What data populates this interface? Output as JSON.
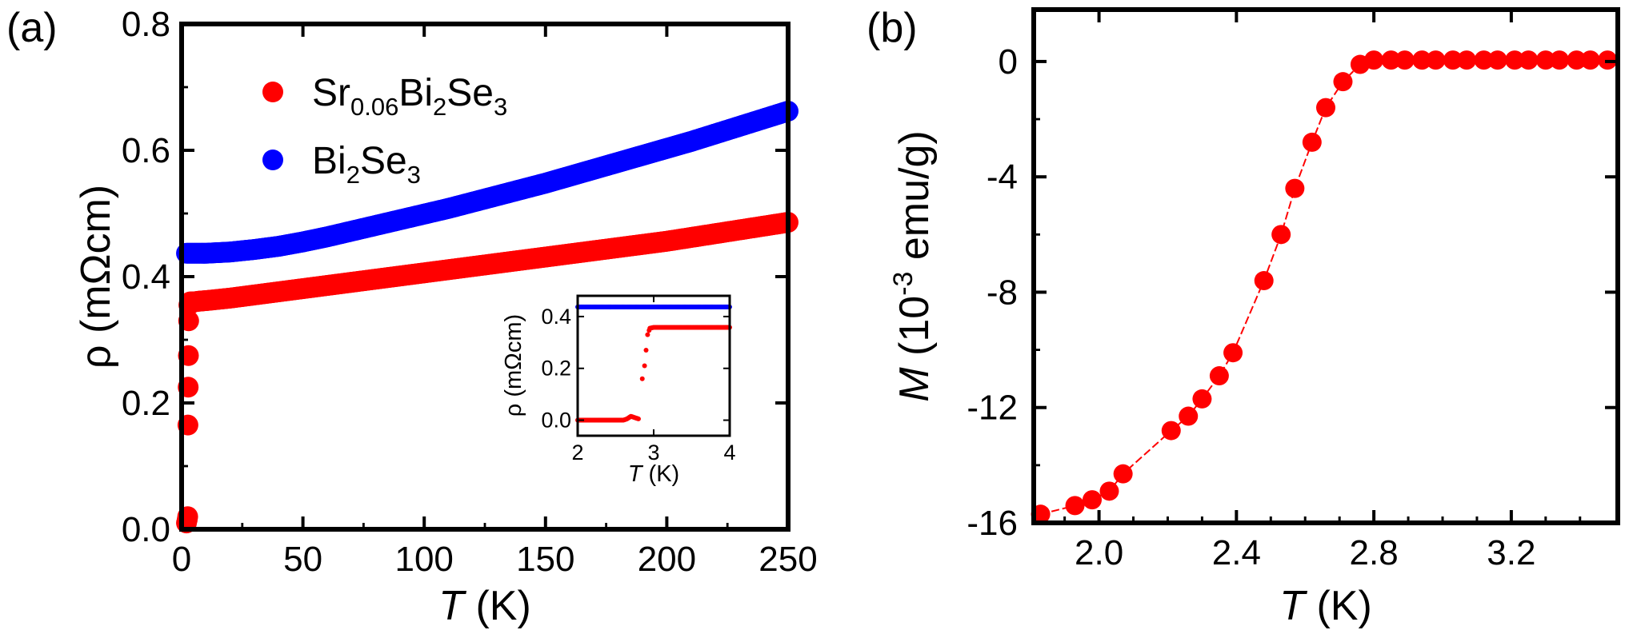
{
  "figure": {
    "panel_a_label": "(a)",
    "panel_b_label": "(b)"
  },
  "chart_data": [
    {
      "id": "a",
      "type": "scatter",
      "title": "",
      "xlabel_italic": "T",
      "xlabel_rest": " (K)",
      "ylabel": "ρ (mΩcm)",
      "xlim": [
        0,
        250
      ],
      "ylim": [
        0,
        0.8
      ],
      "xticks": [
        "0",
        "50",
        "100",
        "150",
        "200",
        "250"
      ],
      "xtick_values": [
        0,
        50,
        100,
        150,
        200,
        250
      ],
      "yticks": [
        "0.0",
        "0.2",
        "0.4",
        "0.6",
        "0.8"
      ],
      "ytick_values": [
        0,
        0.2,
        0.4,
        0.6,
        0.8
      ],
      "legend": {
        "position": "top-left",
        "entries": [
          {
            "base": "Sr",
            "sub1": "0.06",
            "mid1": "Bi",
            "sub2": "2",
            "mid2": "Se",
            "sub3": "3",
            "color": "#ff0000"
          },
          {
            "base": "Bi",
            "sub1": "2",
            "mid1": "Se",
            "sub2": "3",
            "mid2": "",
            "sub3": "",
            "color": "#0000ff"
          }
        ]
      },
      "series": [
        {
          "name": "Sr0.06Bi2Se3",
          "color": "#ff0000",
          "x": [
            2.0,
            2.3,
            2.5,
            2.6,
            2.7,
            2.8,
            2.9,
            3.0,
            3.2,
            3.5,
            4,
            5,
            7,
            10,
            15,
            20,
            30,
            40,
            50,
            60,
            70,
            80,
            90,
            100,
            110,
            120,
            130,
            140,
            150,
            160,
            170,
            180,
            190,
            200,
            210,
            220,
            230,
            240,
            250
          ],
          "y": [
            0.01,
            0.015,
            0.02,
            0.165,
            0.225,
            0.275,
            0.33,
            0.355,
            0.358,
            0.36,
            0.36,
            0.36,
            0.361,
            0.362,
            0.364,
            0.366,
            0.371,
            0.376,
            0.381,
            0.386,
            0.391,
            0.396,
            0.401,
            0.406,
            0.411,
            0.416,
            0.421,
            0.426,
            0.431,
            0.436,
            0.441,
            0.446,
            0.451,
            0.456,
            0.462,
            0.468,
            0.474,
            0.48,
            0.486
          ]
        },
        {
          "name": "Bi2Se3",
          "color": "#0000ff",
          "x": [
            2,
            5,
            10,
            15,
            20,
            25,
            30,
            40,
            50,
            60,
            70,
            80,
            90,
            100,
            110,
            120,
            130,
            140,
            150,
            160,
            170,
            180,
            190,
            200,
            210,
            220,
            230,
            240,
            250
          ],
          "y": [
            0.437,
            0.437,
            0.437,
            0.438,
            0.439,
            0.441,
            0.443,
            0.448,
            0.455,
            0.463,
            0.472,
            0.481,
            0.49,
            0.499,
            0.508,
            0.518,
            0.528,
            0.538,
            0.548,
            0.559,
            0.57,
            0.581,
            0.592,
            0.603,
            0.614,
            0.626,
            0.638,
            0.65,
            0.662
          ]
        }
      ]
    },
    {
      "id": "a_inset",
      "type": "scatter",
      "xlabel_italic": "T",
      "xlabel_rest": " (K)",
      "ylabel": "ρ (mΩcm)",
      "xlim": [
        2,
        4
      ],
      "ylim": [
        -0.06,
        0.48
      ],
      "xticks": [
        "2",
        "3",
        "4"
      ],
      "xtick_values": [
        2,
        3,
        4
      ],
      "yticks": [
        "0.0",
        "0.2",
        "0.4"
      ],
      "ytick_values": [
        0,
        0.2,
        0.4
      ],
      "series": [
        {
          "name": "Sr0.06Bi2Se3",
          "color": "#ff0000",
          "x": [
            2.0,
            2.1,
            2.2,
            2.3,
            2.4,
            2.5,
            2.6,
            2.65,
            2.7,
            2.75,
            2.8,
            2.85,
            2.88,
            2.9,
            2.92,
            2.95,
            3.0,
            3.2,
            3.4,
            3.6,
            3.8,
            4.0
          ],
          "y": [
            0.0,
            0.0,
            0.0,
            0.0,
            0.0,
            0.0,
            0.0,
            0.005,
            0.015,
            0.01,
            0.005,
            0.16,
            0.21,
            0.27,
            0.33,
            0.355,
            0.358,
            0.358,
            0.358,
            0.358,
            0.358,
            0.358
          ]
        },
        {
          "name": "Bi2Se3",
          "color": "#0000ff",
          "x": [
            2.0,
            2.5,
            3.0,
            3.5,
            4.0
          ],
          "y": [
            0.437,
            0.437,
            0.437,
            0.437,
            0.437
          ]
        }
      ]
    },
    {
      "id": "b",
      "type": "line",
      "title": "",
      "xlabel_italic": "T",
      "xlabel_rest": " (K)",
      "ylabel_italic": "M",
      "ylabel_rest": " (10",
      "ylabel_sup": "-3",
      "ylabel_end": " emu/g)",
      "xlim": [
        1.81,
        3.51
      ],
      "ylim": [
        -16,
        1.8
      ],
      "xticks": [
        "2.0",
        "2.4",
        "2.8",
        "3.2"
      ],
      "xtick_values": [
        2.0,
        2.4,
        2.8,
        3.2
      ],
      "yticks": [
        "0",
        "-4",
        "-8",
        "-12",
        "-16"
      ],
      "ytick_values": [
        0,
        -4,
        -8,
        -12,
        -16
      ],
      "series": [
        {
          "name": "M",
          "color": "#ff0000",
          "x": [
            1.83,
            1.93,
            1.98,
            2.03,
            2.07,
            2.21,
            2.26,
            2.3,
            2.35,
            2.39,
            2.48,
            2.53,
            2.57,
            2.62,
            2.66,
            2.71,
            2.76,
            2.8,
            2.85,
            2.89,
            2.94,
            2.98,
            3.03,
            3.07,
            3.12,
            3.16,
            3.21,
            3.25,
            3.3,
            3.34,
            3.39,
            3.43,
            3.48
          ],
          "y": [
            -15.7,
            -15.4,
            -15.2,
            -14.9,
            -14.3,
            -12.8,
            -12.3,
            -11.7,
            -10.9,
            -10.1,
            -7.6,
            -6.0,
            -4.4,
            -2.8,
            -1.6,
            -0.7,
            -0.1,
            0.05,
            0.05,
            0.05,
            0.05,
            0.05,
            0.05,
            0.05,
            0.05,
            0.05,
            0.05,
            0.05,
            0.05,
            0.05,
            0.05,
            0.05,
            0.05
          ]
        }
      ]
    }
  ]
}
